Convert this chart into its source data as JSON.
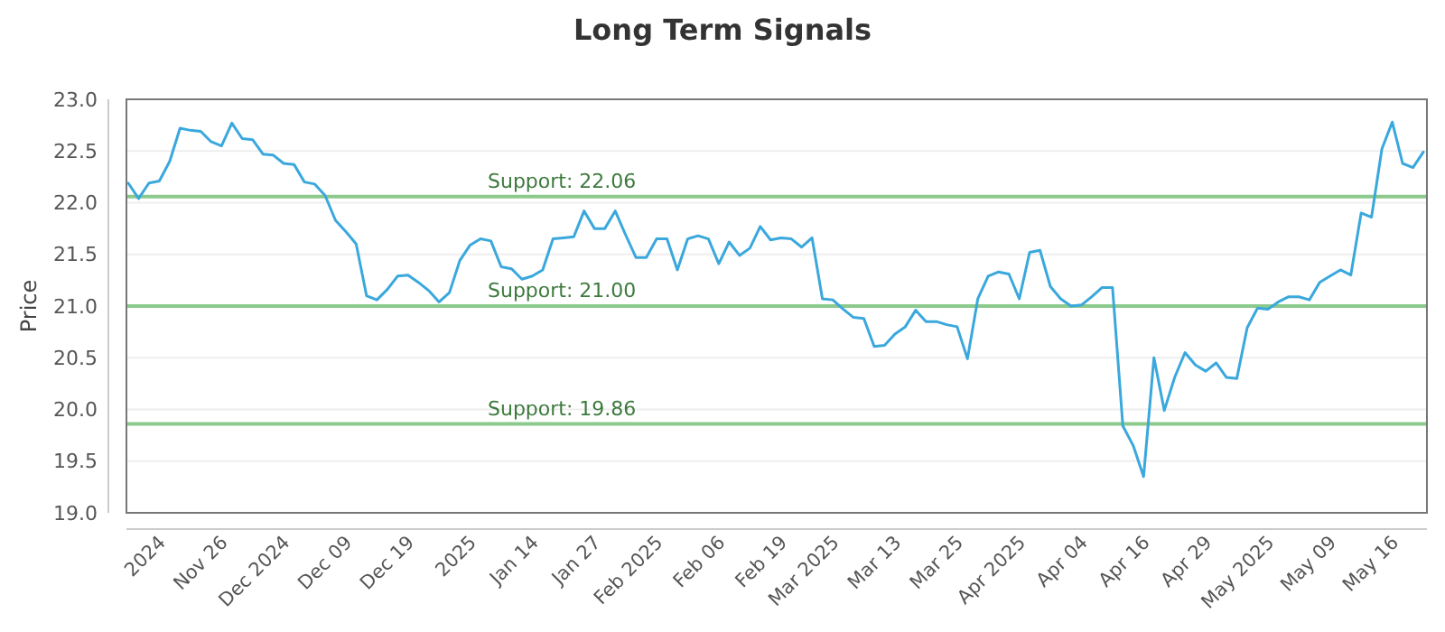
{
  "chart_data": {
    "type": "line",
    "title": "Long Term Signals",
    "ylabel": "Price",
    "categories": [
      null,
      null,
      null,
      "2024",
      null,
      null,
      null,
      null,
      null,
      "Nov 26",
      null,
      null,
      null,
      null,
      null,
      "Dec 2024",
      null,
      null,
      null,
      null,
      null,
      "Dec 09",
      null,
      null,
      null,
      null,
      null,
      "Dec 19",
      null,
      null,
      null,
      null,
      null,
      "2025",
      null,
      null,
      null,
      null,
      null,
      "Jan 14",
      null,
      null,
      null,
      null,
      null,
      "Jan 27",
      null,
      null,
      null,
      null,
      null,
      "Feb 2025",
      null,
      null,
      null,
      null,
      null,
      "Feb 06",
      null,
      null,
      null,
      null,
      null,
      "Feb 19",
      null,
      null,
      null,
      null,
      "Mar 2025",
      null,
      null,
      null,
      null,
      null,
      "Mar 13",
      null,
      null,
      null,
      null,
      null,
      "Mar 25",
      null,
      null,
      null,
      null,
      null,
      "Apr 2025",
      null,
      null,
      null,
      null,
      null,
      "Apr 04",
      null,
      null,
      null,
      null,
      null,
      "Apr 16",
      null,
      null,
      null,
      null,
      null,
      "Apr 29",
      null,
      null,
      null,
      null,
      null,
      "May 2025",
      null,
      null,
      null,
      null,
      null,
      "May 09",
      null,
      null,
      null,
      null,
      null,
      "May 16",
      null,
      null,
      null
    ],
    "series": [
      {
        "color": "#3aa8dc",
        "values": [
          22.19,
          22.04,
          22.19,
          22.21,
          22.4,
          22.72,
          22.7,
          22.69,
          22.59,
          22.55,
          22.77,
          22.62,
          22.61,
          22.47,
          22.46,
          22.38,
          22.37,
          22.2,
          22.18,
          22.07,
          21.83,
          21.72,
          21.6,
          21.1,
          21.06,
          21.16,
          21.29,
          21.3,
          21.23,
          21.15,
          21.04,
          21.13,
          21.44,
          21.59,
          21.65,
          21.63,
          21.38,
          21.36,
          21.26,
          21.29,
          21.35,
          21.65,
          21.66,
          21.67,
          21.92,
          21.75,
          21.75,
          21.92,
          21.69,
          21.47,
          21.47,
          21.65,
          21.65,
          21.35,
          21.65,
          21.68,
          21.65,
          21.41,
          21.62,
          21.49,
          21.56,
          21.77,
          21.64,
          21.66,
          21.65,
          21.57,
          21.66,
          21.07,
          21.06,
          20.97,
          20.89,
          20.88,
          20.61,
          20.62,
          20.73,
          20.8,
          20.96,
          20.85,
          20.85,
          20.82,
          20.8,
          20.49,
          21.07,
          21.29,
          21.33,
          21.31,
          21.07,
          21.52,
          21.54,
          21.19,
          21.07,
          21.0,
          21.01,
          21.09,
          21.18,
          21.18,
          19.84,
          19.65,
          19.35,
          20.5,
          19.99,
          20.31,
          20.55,
          20.43,
          20.37,
          20.45,
          20.31,
          20.3,
          20.79,
          20.98,
          20.97,
          21.04,
          21.09,
          21.09,
          21.06,
          21.23,
          21.29,
          21.35,
          21.3,
          21.9,
          21.86,
          22.52,
          22.78,
          22.38,
          22.34,
          22.49
        ]
      }
    ],
    "ylim": [
      19,
      23
    ],
    "yticks": [
      {
        "value": 19,
        "label": "19.0"
      },
      {
        "value": 19.5,
        "label": "19.5"
      },
      {
        "value": 20,
        "label": "20.0"
      },
      {
        "value": 20.5,
        "label": "20.5"
      },
      {
        "value": 21,
        "label": "21.0"
      },
      {
        "value": 21.5,
        "label": "21.5"
      },
      {
        "value": 22,
        "label": "22.0"
      },
      {
        "value": 22.5,
        "label": "22.5"
      },
      {
        "value": 23,
        "label": "23.0"
      }
    ],
    "grid": "y",
    "marker": "none",
    "line_style": "solid",
    "ref_lines": [
      {
        "axis": "y",
        "value": 22.06,
        "label": "Support: 22.06",
        "color": "#8cc98c"
      },
      {
        "axis": "y",
        "value": 21.0,
        "label": "Support: 21.00",
        "color": "#8cc98c"
      },
      {
        "axis": "y",
        "value": 19.86,
        "label": "Support: 19.86",
        "color": "#8cc98c"
      }
    ]
  }
}
